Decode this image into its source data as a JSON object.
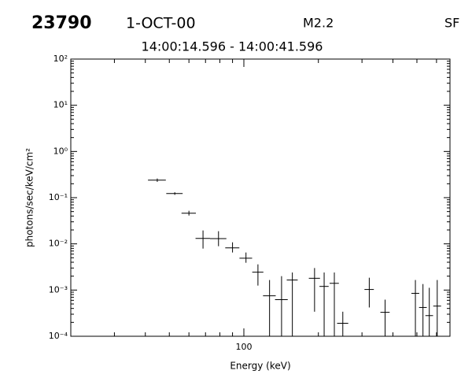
{
  "header": {
    "event": "23790",
    "date": "1-OCT-00",
    "class": "M2.2",
    "code": "SF",
    "time_range": "14:00:14.596 - 14:00:41.596"
  },
  "chart_data": {
    "type": "scatter",
    "x_label": "Energy (keV)",
    "y_label": "photons/sec/keV/cm²",
    "log_x": true,
    "log_y": true,
    "grid": false,
    "xlim": [
      20,
      680
    ],
    "ylim": [
      0.0001,
      100
    ],
    "xticks": [
      100
    ],
    "yticks": [
      {
        "value": 0.0001,
        "label": "10⁻⁴"
      },
      {
        "value": 0.001,
        "label": "10⁻³"
      },
      {
        "value": 0.01,
        "label": "10⁻²"
      },
      {
        "value": 0.1,
        "label": "10⁻¹"
      },
      {
        "value": 1,
        "label": "10⁰"
      },
      {
        "value": 10,
        "label": "10¹"
      },
      {
        "value": 100,
        "label": "10²"
      }
    ],
    "series": [
      {
        "color": "#000000",
        "x": [
          44.7,
          52.6,
          60,
          68.4,
          79,
          90,
          102,
          114,
          127,
          142,
          157,
          193,
          211,
          232,
          251,
          321,
          372,
          493,
          529,
          561,
          604
        ],
        "xerr": [
          3.7,
          4.0,
          4.0,
          4.6,
          6,
          5.9,
          6,
          5.9,
          7.5,
          8.4,
          8,
          10,
          9,
          10,
          13,
          14,
          16,
          18,
          19,
          20,
          22
        ],
        "values": [
          0.24,
          0.123,
          0.046,
          0.0131,
          0.013,
          0.0082,
          0.0049,
          0.00244,
          0.00075,
          0.00062,
          0.00165,
          0.0018,
          0.0012,
          0.0014,
          0.000191,
          0.00103,
          0.00033,
          0.00085,
          0.00042,
          0.00028,
          0.00045
        ],
        "ylow": [
          0.22,
          0.115,
          0.041,
          0.0079,
          0.0089,
          0.0065,
          0.0039,
          0.00125,
          0.0001,
          0.0001,
          0.0001,
          0.00034,
          0.0001,
          0.0001,
          0.0001,
          0.00042,
          0.0001,
          0.0001,
          0.0001,
          0.0001,
          0.0001
        ],
        "yhigh": [
          0.26,
          0.131,
          0.052,
          0.0195,
          0.0188,
          0.0108,
          0.0065,
          0.0036,
          0.00165,
          0.002,
          0.0024,
          0.003,
          0.0024,
          0.0024,
          0.00034,
          0.00185,
          0.00062,
          0.00165,
          0.00135,
          0.00112,
          0.00165
        ]
      }
    ]
  }
}
